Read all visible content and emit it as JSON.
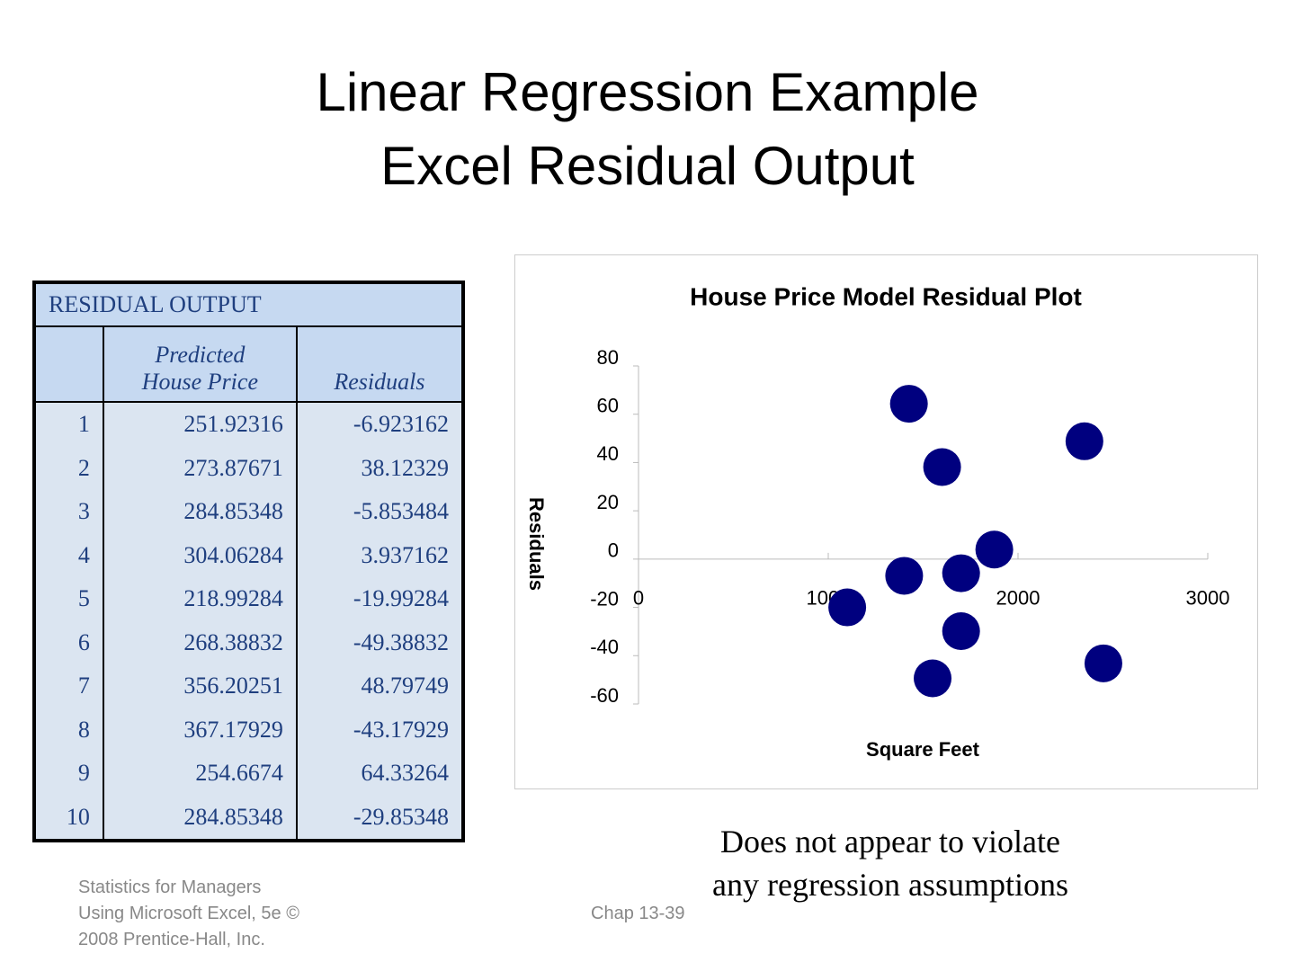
{
  "header": {
    "title": [
      "Linear Regression Example",
      "Excel Residual Output"
    ]
  },
  "table": {
    "title": "RESIDUAL OUTPUT",
    "columns": [
      "",
      [
        "Predicted",
        "House Price"
      ],
      "Residuals"
    ],
    "rows": [
      [
        1,
        251.92316,
        -6.923162
      ],
      [
        2,
        273.87671,
        38.12329
      ],
      [
        3,
        284.85348,
        -5.853484
      ],
      [
        4,
        304.06284,
        3.937162
      ],
      [
        5,
        218.99284,
        -19.99284
      ],
      [
        6,
        268.38832,
        -49.38832
      ],
      [
        7,
        356.20251,
        48.79749
      ],
      [
        8,
        367.17929,
        -43.17929
      ],
      [
        9,
        254.6674,
        64.33264
      ],
      [
        10,
        284.85348,
        -29.85348
      ]
    ]
  },
  "chart_data": {
    "type": "scatter",
    "title": "House Price Model Residual Plot",
    "x_label": "Square Feet",
    "y_label": "Residuals",
    "x": [
      1400,
      1600,
      1700,
      1875,
      1100,
      1550,
      2350,
      2450,
      1425,
      1700
    ],
    "values": [
      -6.923162,
      38.12329,
      -5.853484,
      3.937162,
      -19.99284,
      -49.38832,
      48.79749,
      -43.17929,
      64.33264,
      -29.85348
    ],
    "color": "#00007f",
    "xlim": [
      0,
      3000
    ],
    "xticks": [
      0,
      1000,
      2000,
      3000
    ],
    "ylim": [
      -60,
      80
    ],
    "yticks": [
      80,
      60,
      40,
      20,
      0,
      -20,
      -40,
      -60
    ]
  },
  "note": [
    "Does not appear to violate",
    "any regression assumptions"
  ],
  "footer": {
    "source": [
      "Statistics for Managers",
      "Using Microsoft Excel, 5e ©",
      "2008 Prentice-Hall, Inc."
    ],
    "page": "Chap 13-39"
  }
}
